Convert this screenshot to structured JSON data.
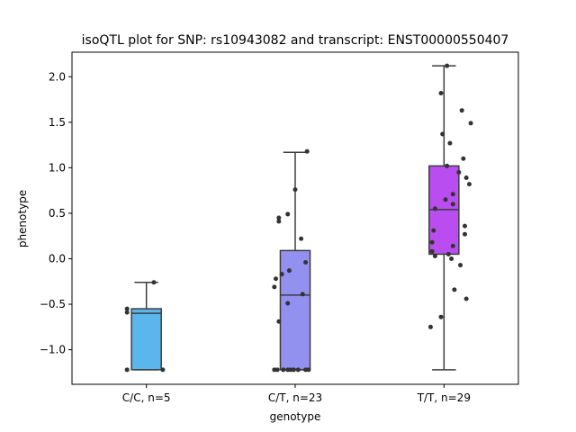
{
  "chart_data": {
    "type": "box",
    "title": "isoQTL plot for SNP: rs10943082 and transcript: ENST00000550407",
    "xlabel": "genotype",
    "ylabel": "phenotype",
    "ylim": [
      -1.38,
      2.27
    ],
    "yticks": [
      "-1.0",
      "-0.5",
      "0.0",
      "0.5",
      "1.0",
      "1.5",
      "2.0"
    ],
    "categories": [
      "C/C, n=5",
      "C/T, n=23",
      "T/T, n=29"
    ],
    "boxes": [
      {
        "category": "C/C, n=5",
        "color": "#5bb6ee",
        "q1": -1.22,
        "median": -0.6,
        "q3": -0.55,
        "whisker_low": -1.22,
        "whisker_high": -0.26
      },
      {
        "category": "C/T, n=23",
        "color": "#9391f0",
        "q1": -1.22,
        "median": -0.4,
        "q3": 0.09,
        "whisker_low": -1.22,
        "whisker_high": 1.17
      },
      {
        "category": "T/T, n=29",
        "color": "#b94df0",
        "q1": 0.05,
        "median": 0.54,
        "q3": 1.02,
        "whisker_low": -1.22,
        "whisker_high": 2.12
      }
    ],
    "points": [
      [
        [
          -0.13,
          -0.55
        ],
        [
          -0.13,
          -0.59
        ],
        [
          -0.13,
          -1.22
        ],
        [
          0.05,
          -0.26
        ],
        [
          0.11,
          -1.22
        ]
      ],
      [
        [
          0.08,
          1.18
        ],
        [
          0.0,
          0.76
        ],
        [
          -0.05,
          0.49
        ],
        [
          -0.11,
          0.45
        ],
        [
          -0.11,
          0.41
        ],
        [
          0.04,
          0.22
        ],
        [
          -0.04,
          -0.13
        ],
        [
          -0.09,
          -0.17
        ],
        [
          -0.13,
          -0.22
        ],
        [
          -0.14,
          -0.31
        ],
        [
          0.07,
          -0.04
        ],
        [
          0.05,
          -0.39
        ],
        [
          -0.05,
          -0.49
        ],
        [
          -0.11,
          -0.69
        ],
        [
          -0.14,
          -1.22
        ],
        [
          -0.08,
          -1.22
        ],
        [
          -0.05,
          -1.22
        ],
        [
          -0.03,
          -1.22
        ],
        [
          -0.01,
          -1.22
        ],
        [
          0.02,
          -1.22
        ],
        [
          0.07,
          -1.22
        ],
        [
          0.09,
          -1.22
        ],
        [
          -0.12,
          -1.22
        ]
      ],
      [
        [
          0.02,
          2.12
        ],
        [
          -0.02,
          1.82
        ],
        [
          0.12,
          1.63
        ],
        [
          0.18,
          1.49
        ],
        [
          -0.01,
          1.37
        ],
        [
          0.04,
          1.27
        ],
        [
          0.13,
          1.1
        ],
        [
          0.02,
          1.02
        ],
        [
          0.1,
          0.95
        ],
        [
          0.15,
          0.89
        ],
        [
          0.17,
          0.82
        ],
        [
          0.06,
          0.71
        ],
        [
          0.01,
          0.65
        ],
        [
          0.06,
          0.6
        ],
        [
          -0.06,
          0.55
        ],
        [
          0.14,
          0.36
        ],
        [
          -0.07,
          0.31
        ],
        [
          0.14,
          0.27
        ],
        [
          -0.08,
          0.18
        ],
        [
          0.06,
          0.14
        ],
        [
          -0.08,
          0.08
        ],
        [
          0.03,
          0.05
        ],
        [
          -0.06,
          0.03
        ],
        [
          0.05,
          0.0
        ],
        [
          0.11,
          -0.07
        ],
        [
          0.07,
          -0.34
        ],
        [
          0.15,
          -0.44
        ],
        [
          -0.02,
          -0.64
        ],
        [
          -0.09,
          -0.75
        ]
      ]
    ],
    "point_color": "#333333",
    "grid": false,
    "legend": "none"
  }
}
